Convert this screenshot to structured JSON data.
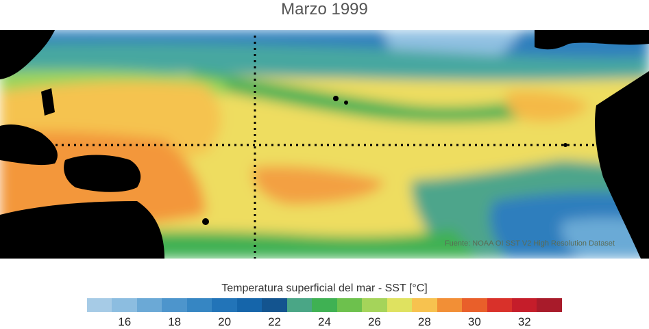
{
  "title": "Marzo 1999",
  "source": "Fuente: NOAA OI SST V2 High Resolution Dataset",
  "colorbar": {
    "label": "Temperatura superficial del mar - SST  [°C]",
    "start": 15,
    "step": 1,
    "colors": [
      "#a6cbe6",
      "#8cbde0",
      "#6ba9d6",
      "#4d95cc",
      "#3686c3",
      "#2274b8",
      "#1565aa",
      "#13548f",
      "#4aa686",
      "#3fb153",
      "#6dc14d",
      "#a5d45a",
      "#dfe260",
      "#f7c24f",
      "#f28f36",
      "#e95f2a",
      "#d9312a",
      "#c51d2a",
      "#a81b2a"
    ],
    "ticks": [
      "16",
      "18",
      "20",
      "22",
      "24",
      "26",
      "28",
      "30",
      "32"
    ]
  },
  "legend_note": "Mapa de SST del Pacífico tropical; continentes en negro, líneas punteadas en el ecuador y la línea de cambio de fecha."
}
